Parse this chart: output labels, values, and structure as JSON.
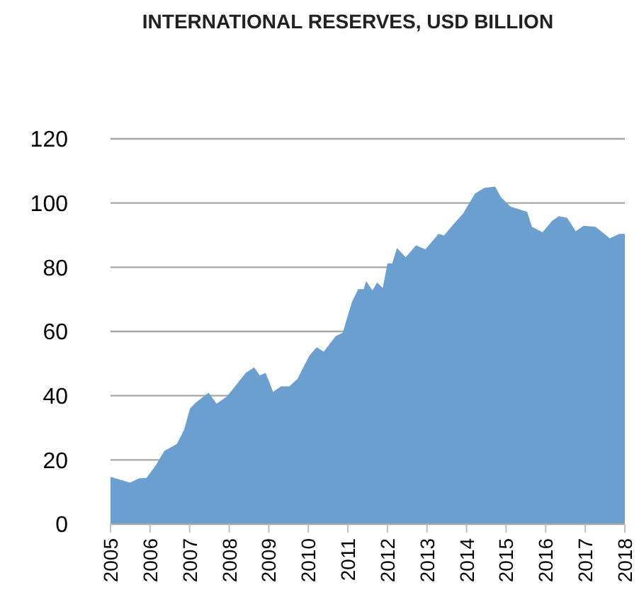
{
  "chart_data": {
    "type": "area",
    "title": "INTERNATIONAL RESERVES, USD BILLION",
    "x": [
      2005,
      2005.49,
      2005.73,
      2005.91,
      2006.15,
      2006.36,
      2006.68,
      2006.86,
      2007.01,
      2007.16,
      2007.48,
      2007.68,
      2007.94,
      2008.18,
      2008.42,
      2008.63,
      2008.77,
      2008.92,
      2009.11,
      2009.31,
      2009.52,
      2009.73,
      2009.83,
      2010.03,
      2010.21,
      2010.39,
      2010.69,
      2010.87,
      2011.1,
      2011.26,
      2011.4,
      2011.46,
      2011.62,
      2011.74,
      2011.88,
      2012,
      2012.12,
      2012.24,
      2012.46,
      2012.72,
      2012.96,
      2013.29,
      2013.43,
      2013.67,
      2013.91,
      2014.21,
      2014.45,
      2014.72,
      2014.87,
      2015.11,
      2015.53,
      2015.65,
      2015.92,
      2016.16,
      2016.33,
      2016.54,
      2016.76,
      2016.96,
      2017.26,
      2017.62,
      2017.86,
      2018
    ],
    "series": [
      {
        "color": "#6a9fd0",
        "values": [
          14.7,
          12.9,
          14.3,
          14.4,
          18.4,
          22.8,
          25,
          29.4,
          36,
          37.9,
          40.9,
          37.5,
          39.7,
          43.4,
          47.1,
          48.8,
          46.3,
          47.1,
          41.2,
          42.9,
          42.9,
          45.3,
          47.8,
          52.5,
          55.1,
          53.7,
          58.5,
          59.6,
          69.1,
          73.2,
          73.2,
          75.7,
          72.8,
          75.3,
          73.5,
          81.2,
          81.2,
          86,
          83.1,
          86.8,
          85.6,
          90.4,
          89.9,
          93.4,
          96.7,
          102.9,
          104.7,
          105.1,
          101.8,
          98.9,
          97.3,
          92.6,
          90.9,
          94.4,
          95.9,
          95.4,
          91.2,
          92.9,
          92.6,
          89,
          90.4,
          90.4
        ]
      }
    ],
    "xlim": [
      2005,
      2018
    ],
    "xticks": [
      2005,
      2006,
      2007,
      2008,
      2009,
      2010,
      2011,
      2012,
      2013,
      2014,
      2015,
      2016,
      2017,
      2018
    ],
    "ylim": [
      0,
      120
    ],
    "yticks": [
      0,
      20,
      40,
      60,
      80,
      100,
      120
    ],
    "grid": "y"
  }
}
